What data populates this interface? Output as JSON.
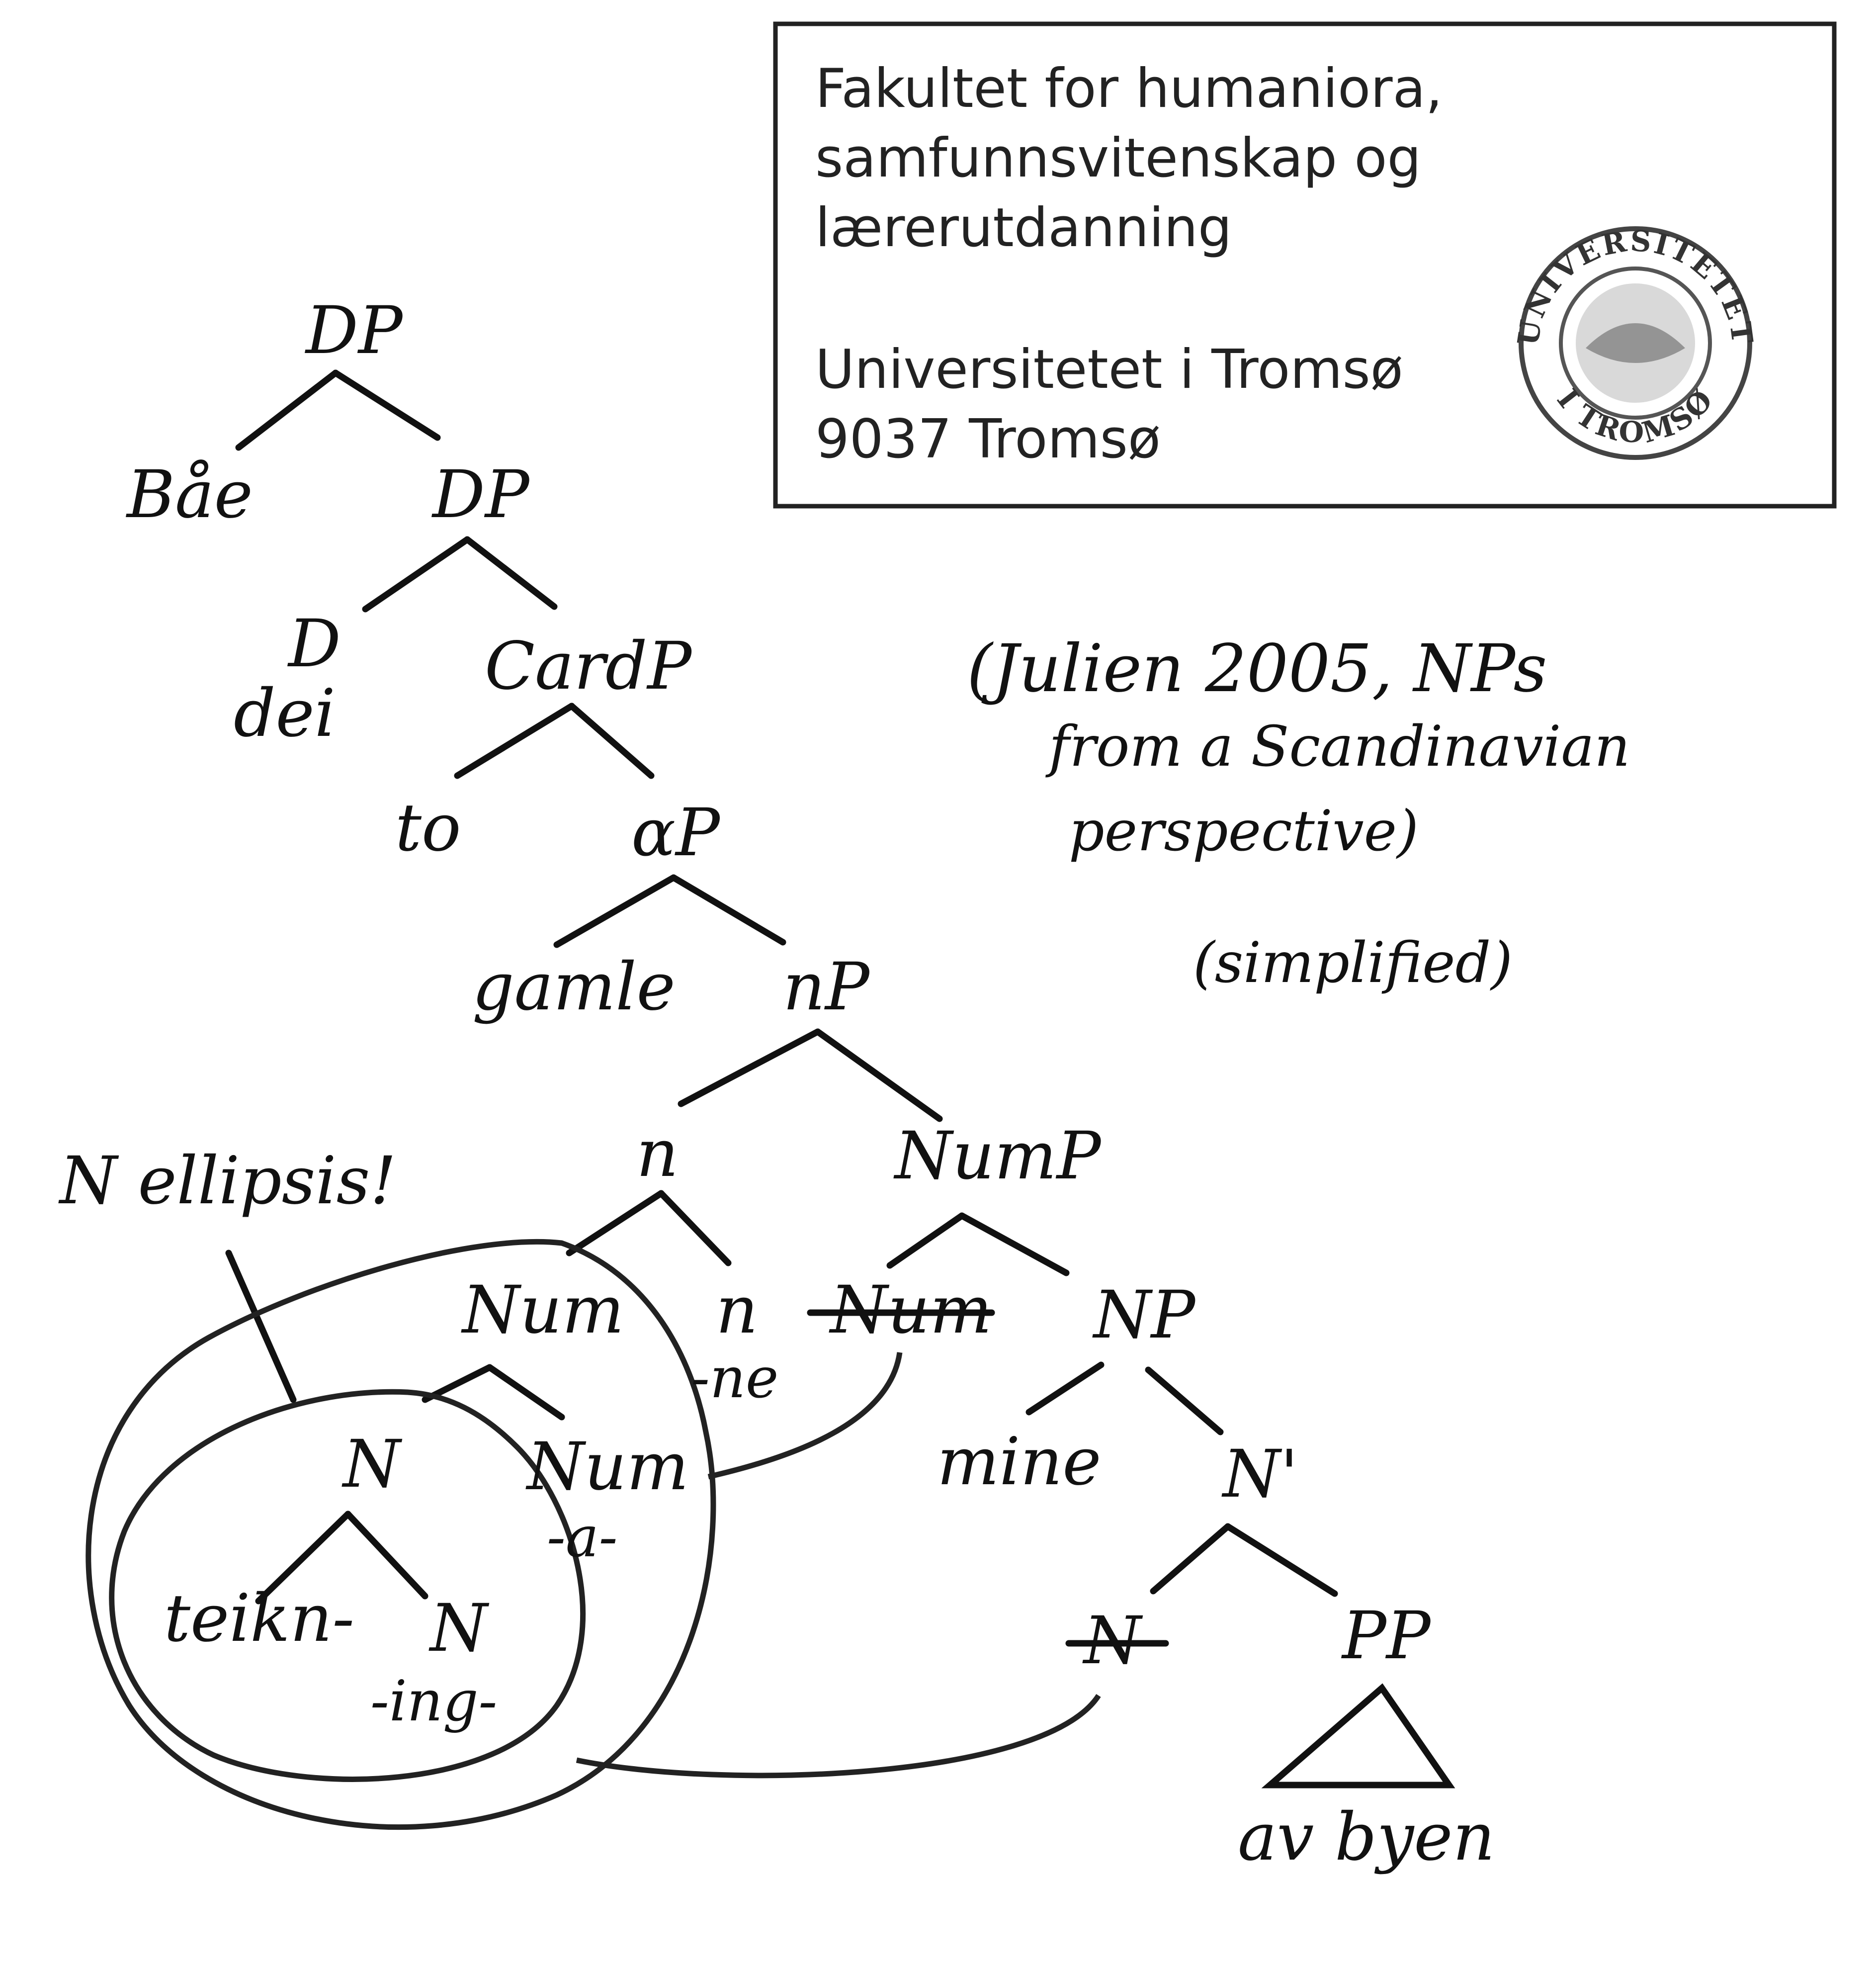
{
  "stamp": {
    "line1": "Fakultet for humaniora,",
    "line2": "samfunnsvitenskap og",
    "line3": "lærerutdanning",
    "line4": "Universitetet i Tromsø",
    "line5": "9037 Tromsø",
    "seal_top": "UNIVERSITETET",
    "seal_bottom": "I TROMSØ"
  },
  "caption": {
    "line1": "(Julien 2005, NPs",
    "line2": "from a Scandinavian",
    "line3": "perspective)",
    "line4": "(simplified)"
  },
  "annotation": {
    "ellipsis": "N ellipsis!"
  },
  "tree": {
    "dp_root": "DP",
    "bae": "Båe",
    "dp": "DP",
    "d": "D",
    "dei": "dei",
    "cardp": "CardP",
    "to": "to",
    "alphap": "αP",
    "gamle": "gamle",
    "np_small": "nP",
    "n_head": "n",
    "nump": "NumP",
    "num": "Num",
    "n_lower": "n",
    "ne": "-ne",
    "num_struck": "Num",
    "np": "NP",
    "n_inner": "N",
    "num_inner": "Num",
    "a_suffix": "-a-",
    "mine": "mine",
    "n_bar": "N'",
    "teikn": "teikn-",
    "n_leaf": "N",
    "ing": "-ing-",
    "n_struck": "N",
    "pp": "PP",
    "av_byen": "av byen"
  },
  "colors": {
    "ink": "#111111",
    "background": "#ffffff"
  }
}
